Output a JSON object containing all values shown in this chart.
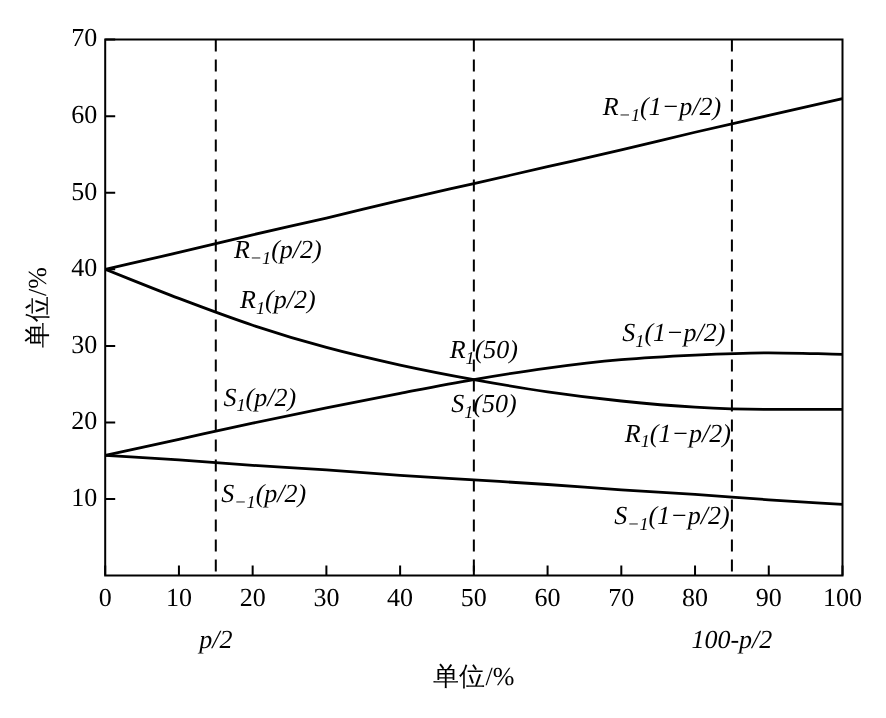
{
  "chart_data": {
    "type": "line",
    "xlabel": "单位/%",
    "ylabel": "单位/%",
    "xlim": [
      0,
      100
    ],
    "ylim": [
      0,
      70
    ],
    "xticks": [
      0,
      10,
      20,
      30,
      40,
      50,
      60,
      70,
      80,
      90,
      100
    ],
    "yticks": [
      10,
      20,
      30,
      40,
      50,
      60,
      70
    ],
    "x": [
      0,
      10,
      20,
      30,
      40,
      50,
      60,
      70,
      80,
      90,
      100
    ],
    "series": [
      {
        "color": "#000000",
        "values": [
          40,
          42.2,
          44.5,
          46.7,
          49,
          51.2,
          53.4,
          55.6,
          57.9,
          60.1,
          62.3
        ]
      },
      {
        "color": "#000000",
        "values": [
          40,
          36.2,
          32.7,
          29.8,
          27.5,
          25.6,
          24.0,
          22.8,
          22.0,
          21.7,
          21.7
        ]
      },
      {
        "color": "#000000",
        "values": [
          15.7,
          17.8,
          19.9,
          21.9,
          23.8,
          25.6,
          27.1,
          28.2,
          28.8,
          29.1,
          28.9
        ]
      },
      {
        "color": "#000000",
        "values": [
          15.7,
          15.1,
          14.4,
          13.8,
          13.1,
          12.5,
          11.9,
          11.2,
          10.6,
          9.9,
          9.3
        ]
      }
    ],
    "marker": "none",
    "line_style": "solid",
    "ref_lines": [
      {
        "axis": "x",
        "value": 15,
        "label": "p/2",
        "line_style": "dashed"
      },
      {
        "axis": "x",
        "value": 50,
        "line_style": "dashed"
      },
      {
        "axis": "x",
        "value": 85,
        "label": "100-p/2",
        "line_style": "dashed"
      }
    ],
    "annotations": [
      {
        "text": "R$_{−1}$(1−p/2)",
        "x": 85,
        "y": 59.2
      },
      {
        "text": "R$_{−1}$(p/2)",
        "x": 15,
        "y": 43.4
      },
      {
        "text": "R$_{1}$(p/2)",
        "x": 15,
        "y": 34.5
      },
      {
        "text": "R$_{1}$(50)",
        "x": 50,
        "y": 25.6
      },
      {
        "text": "S$_{1}$(50)",
        "x": 50,
        "y": 25.6
      },
      {
        "text": "S$_{1}$(1−p/2)",
        "x": 85,
        "y": 28.9
      },
      {
        "text": "S$_{1}$(p/2)",
        "x": 15,
        "y": 18.9
      },
      {
        "text": "R$_{1}$(1−p/2)",
        "x": 85,
        "y": 21.8
      },
      {
        "text": "S$_{−1}$(p/2)",
        "x": 15,
        "y": 14.7
      },
      {
        "text": "S$_{−1}$(1−p/2)",
        "x": 85,
        "y": 10.2
      }
    ]
  }
}
